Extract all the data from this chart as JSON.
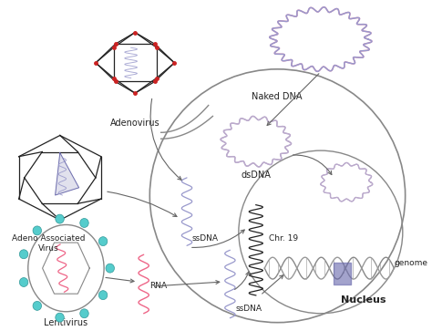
{
  "bg_color": "#ffffff",
  "labels": {
    "adenovirus": "Adenovirus",
    "aav": "Adeno Associated\nVirus",
    "lentivirus": "Lentivirus",
    "naked_dna": "Naked DNA",
    "dsdna": "dsDNA",
    "ssdna_top": "ssDNA",
    "ssdna_bot": "ssDNA",
    "rna": "RNA",
    "chr19": "Chr. 19",
    "genome": "genome",
    "nucleus": "Nucleus"
  },
  "colors": {
    "black": "#222222",
    "dark_gray": "#666666",
    "red": "#cc2222",
    "blue_light": "#aaaacc",
    "blue_mid": "#7777bb",
    "pink": "#dd6688",
    "teal": "#55bbbb",
    "dna_pink": "#ee88aa",
    "dna_blue": "#9999cc",
    "gray": "#999999"
  }
}
